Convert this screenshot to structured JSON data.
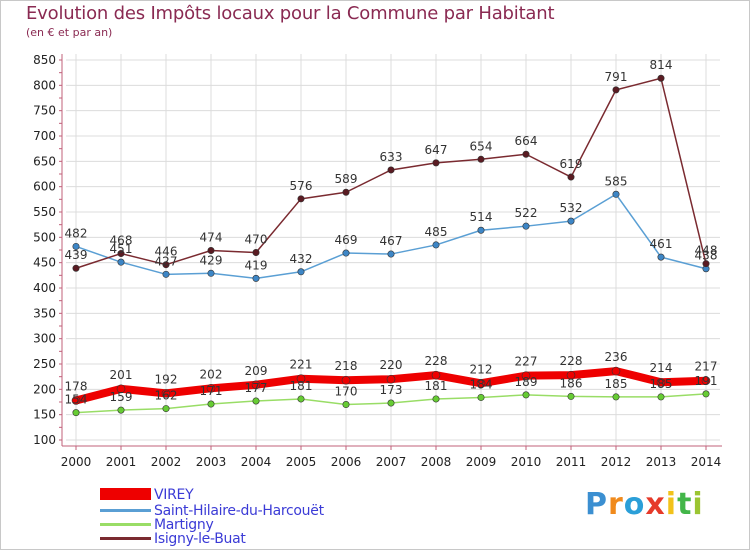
{
  "title": "Evolution des Impôts locaux pour la Commune par Habitant",
  "subtitle": "(en € et par an)",
  "logo_text": "Proxiti",
  "chart_data": {
    "type": "line",
    "title": "Evolution des Impôts locaux pour la Commune par Habitant",
    "ylabel": "(en € et par an)",
    "ylim": [
      100,
      850
    ],
    "yticks": [
      100,
      150,
      200,
      250,
      300,
      350,
      400,
      450,
      500,
      550,
      600,
      650,
      700,
      750,
      800,
      850
    ],
    "x": [
      "2000",
      "2001",
      "2002",
      "2003",
      "2004",
      "2005",
      "2006",
      "2007",
      "2008",
      "2009",
      "2010",
      "2011",
      "2012",
      "2013",
      "2014"
    ],
    "legend_position": "bottom-left",
    "series": [
      {
        "name": "VIREY",
        "color": "#ee0000",
        "values": [
          178,
          201,
          192,
          202,
          209,
          221,
          218,
          220,
          228,
          212,
          227,
          228,
          236,
          214,
          217
        ]
      },
      {
        "name": "Saint-Hilaire-du-Harcouët",
        "color": "#5a9fd4",
        "values": [
          482,
          451,
          427,
          429,
          419,
          432,
          469,
          467,
          485,
          514,
          522,
          532,
          585,
          461,
          438
        ]
      },
      {
        "name": "Martigny",
        "color": "#99dd66",
        "values": [
          154,
          159,
          162,
          171,
          177,
          181,
          170,
          173,
          181,
          184,
          189,
          186,
          185,
          185,
          191
        ]
      },
      {
        "name": "Isigny-le-Buat",
        "color": "#7a2a30",
        "values": [
          439,
          468,
          446,
          474,
          470,
          576,
          589,
          633,
          647,
          654,
          664,
          619,
          791,
          814,
          448
        ]
      }
    ]
  }
}
